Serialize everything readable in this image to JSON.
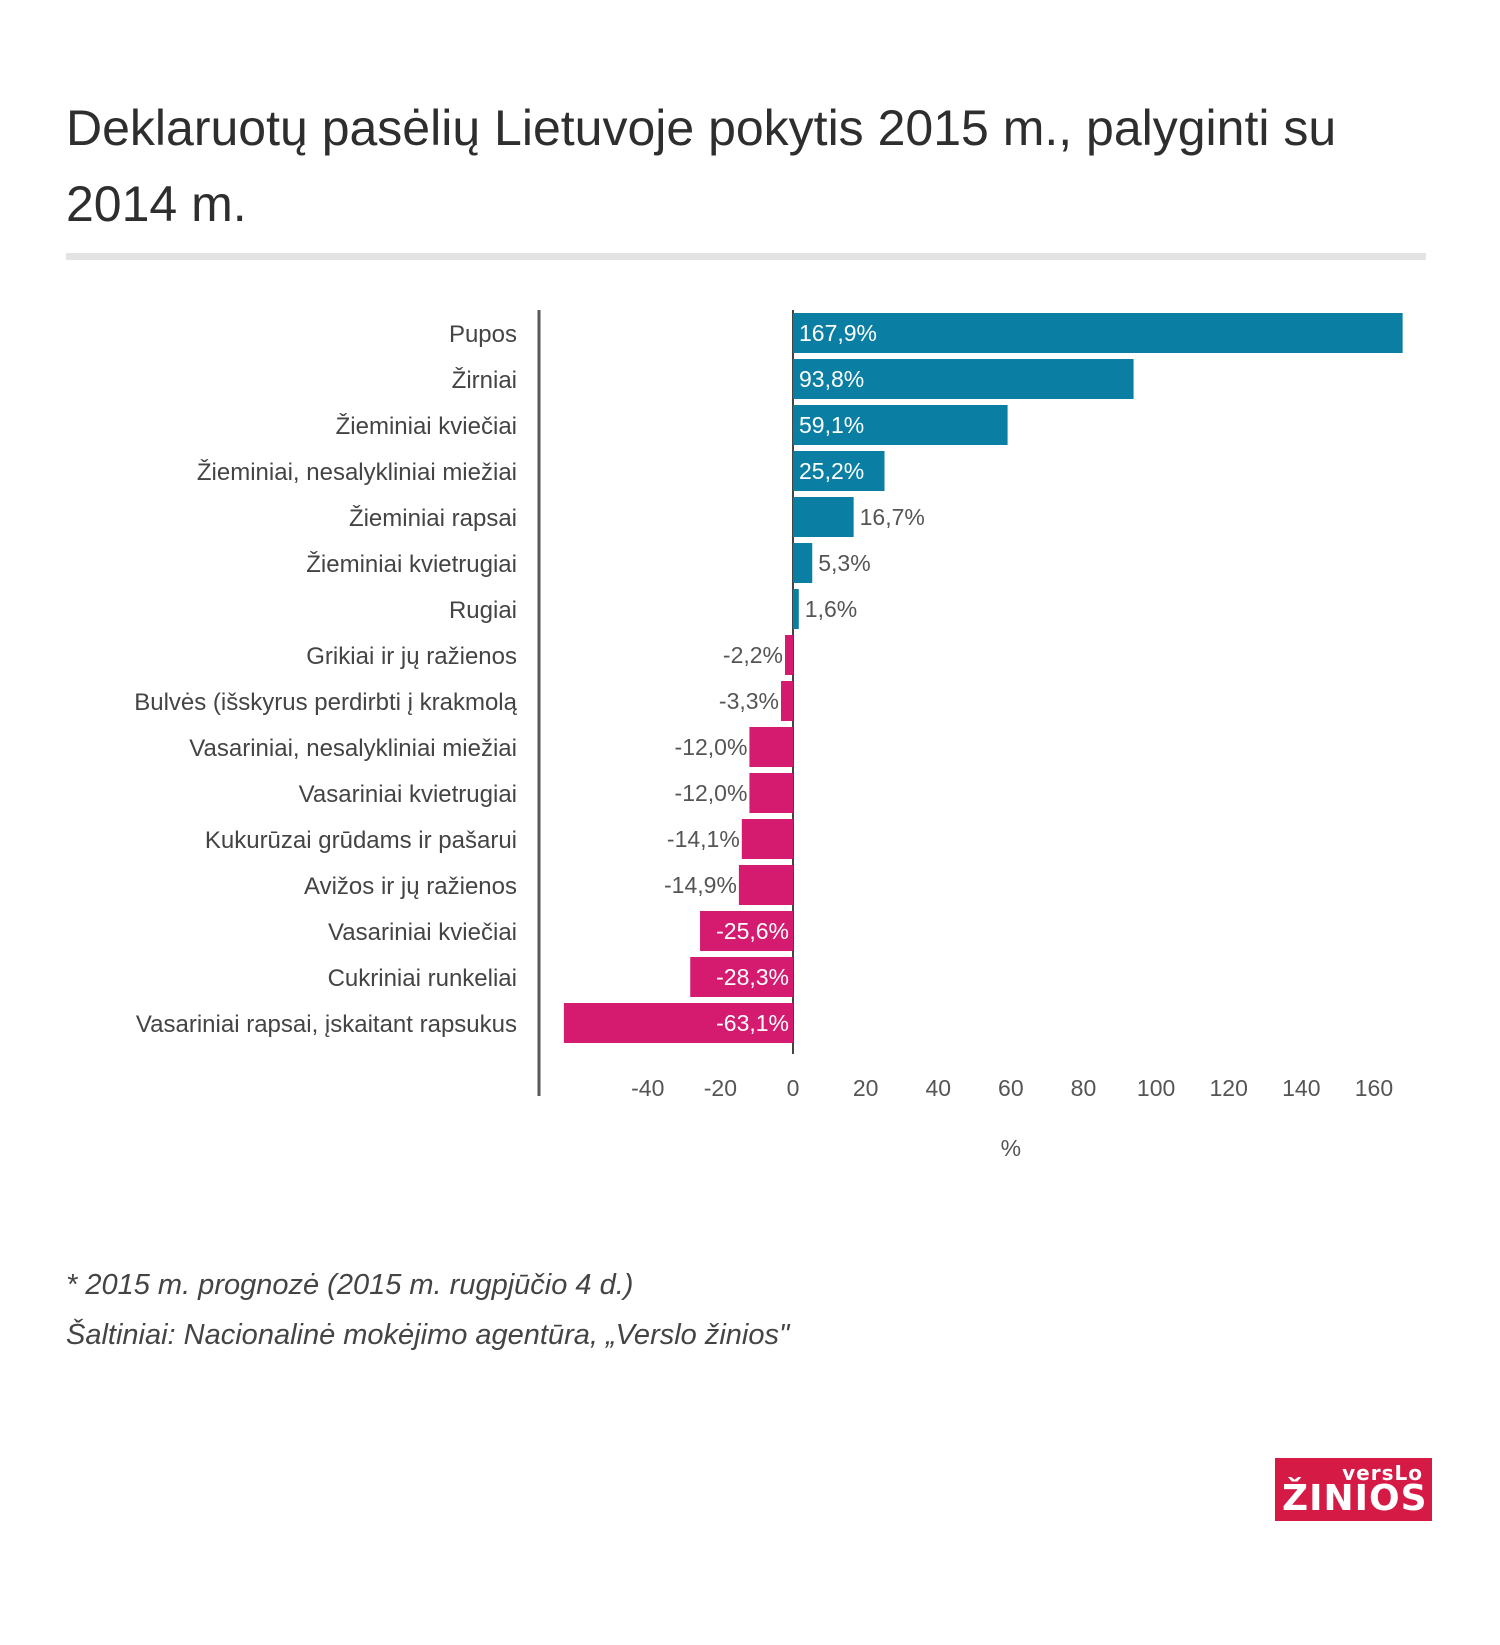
{
  "header": {
    "title": "Deklaruotų pasėlių Lietuvoje pokytis 2015 m., palyginti su 2014 m."
  },
  "chart_data": {
    "type": "bar",
    "orientation": "horizontal",
    "categories": [
      "Pupos",
      "Žirniai",
      "Žieminiai kviečiai",
      "Žieminiai, nesalykliniai miežiai",
      "Žieminiai rapsai",
      "Žieminiai kvietrugiai",
      "Rugiai",
      "Grikiai ir jų ražienos",
      "Bulvės (išskyrus perdirbti į krakmolą",
      "Vasariniai, nesalykliniai miežiai",
      "Vasariniai kvietrugiai",
      "Kukurūzai grūdams ir pašarui",
      "Avižos ir jų ražienos",
      "Vasariniai kviečiai",
      "Cukriniai runkeliai",
      "Vasariniai rapsai, įskaitant rapsukus"
    ],
    "values": [
      167.9,
      93.8,
      59.1,
      25.2,
      16.7,
      5.3,
      1.6,
      -2.2,
      -3.3,
      -12.0,
      -12.0,
      -14.1,
      -14.9,
      -25.6,
      -28.3,
      -63.1
    ],
    "labels": [
      "167,9%",
      "93,8%",
      "59,1%",
      "25,2%",
      "16,7%",
      "5,3%",
      "1,6%",
      "-2,2%",
      "-3,3%",
      "-12,0%",
      "-12,0%",
      "-14,1%",
      "-14,9%",
      "-25,6%",
      "-28,3%",
      "-63,1%"
    ],
    "xticks": [
      -40,
      -20,
      0,
      20,
      40,
      60,
      80,
      100,
      120,
      140,
      160
    ],
    "xlim": [
      -64,
      168
    ],
    "xlabel": "%",
    "ylabel": "",
    "grid": false,
    "colors": {
      "positive": "#0b7ea3",
      "negative": "#d41b6f"
    }
  },
  "footnotes": {
    "forecast": "* 2015 m. prognozė (2015 m. rugpjūčio 4 d.)",
    "sources": "Šaltiniai: Nacionalinė mokėjimo agentūra, „Verslo žinios\""
  },
  "logo": {
    "line1": "versLo",
    "line2": "ŽINIOS"
  }
}
